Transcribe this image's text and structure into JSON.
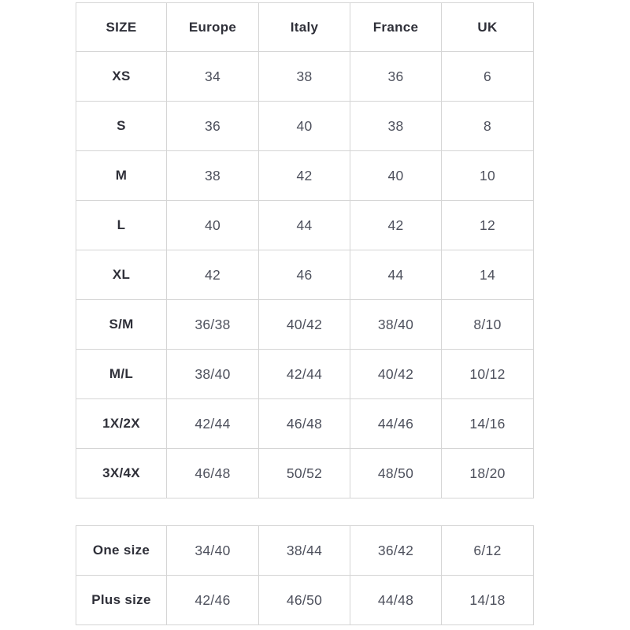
{
  "chart_data": [
    {
      "type": "table",
      "name": "size-conversion-table",
      "columns": [
        "SIZE",
        "Europe",
        "Italy",
        "France",
        "UK"
      ],
      "rows": [
        [
          "XS",
          "34",
          "38",
          "36",
          "6"
        ],
        [
          "S",
          "36",
          "40",
          "38",
          "8"
        ],
        [
          "M",
          "38",
          "42",
          "40",
          "10"
        ],
        [
          "L",
          "40",
          "44",
          "42",
          "12"
        ],
        [
          "XL",
          "42",
          "46",
          "44",
          "14"
        ],
        [
          "S/M",
          "36/38",
          "40/42",
          "38/40",
          "8/10"
        ],
        [
          "M/L",
          "38/40",
          "42/44",
          "40/42",
          "10/12"
        ],
        [
          "1X/2X",
          "42/44",
          "46/48",
          "44/46",
          "14/16"
        ],
        [
          "3X/4X",
          "46/48",
          "50/52",
          "48/50",
          "18/20"
        ]
      ]
    },
    {
      "type": "table",
      "name": "special-sizes-table",
      "columns": null,
      "rows": [
        [
          "One size",
          "34/40",
          "38/44",
          "36/42",
          "6/12"
        ],
        [
          "Plus size",
          "42/46",
          "46/50",
          "44/48",
          "14/18"
        ]
      ]
    }
  ],
  "colors": {
    "border": "#d5d5d5",
    "label_text": "#2f3039",
    "value_text": "#4d505c",
    "background": "#ffffff"
  }
}
